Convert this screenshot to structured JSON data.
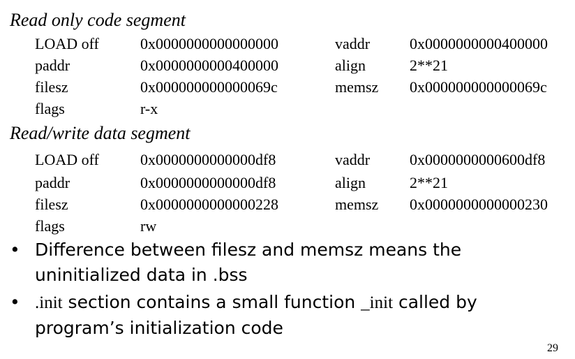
{
  "segments": [
    {
      "title": "Read  only code segment",
      "rows": [
        [
          "LOAD off",
          "0x0000000000000000",
          "vaddr",
          "0x0000000000400000"
        ],
        [
          "paddr",
          "0x0000000000400000",
          "align",
          "2**21"
        ],
        [
          "filesz",
          "0x000000000000069c",
          "memsz",
          "0x000000000000069c"
        ],
        [
          "flags",
          "r-x",
          "",
          ""
        ]
      ]
    },
    {
      "title": "Read/write data segment",
      "rows": [
        [
          "LOAD off",
          "0x0000000000000df8",
          "vaddr",
          "0x0000000000600df8"
        ],
        [
          "paddr",
          "0x0000000000000df8",
          "align",
          "2**21"
        ],
        [
          "filesz",
          "0x0000000000000228",
          "memsz",
          "0x0000000000000230"
        ],
        [
          "flags",
          "rw",
          "",
          ""
        ]
      ]
    }
  ],
  "bullets": [
    {
      "dot": "•",
      "text": "Difference between filesz and memsz means the uninitialized data in .bss"
    },
    {
      "dot": "•",
      "part1": ".init",
      "part2": " section contains a small function ",
      "part3": "_init",
      "part4": " called by program’s  initialization code"
    }
  ],
  "page_number": "29"
}
